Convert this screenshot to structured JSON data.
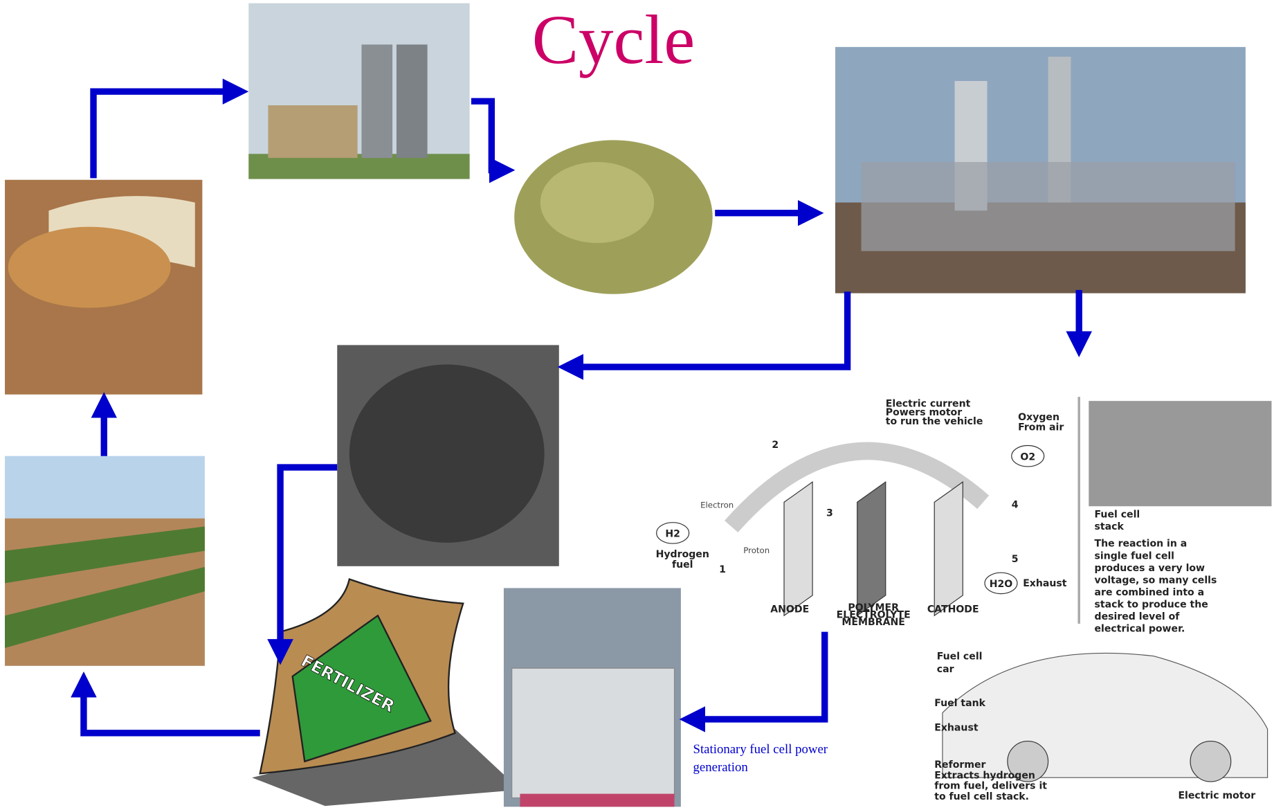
{
  "title": "Cycle",
  "caption": [
    "Stationary fuel cell power",
    "generation"
  ],
  "fertilizer_label": "FERTILIZER",
  "fuel_cell": {
    "current": [
      "Electric current",
      "Powers motor",
      "to run the vehicle"
    ],
    "oxygen": [
      "Oxygen",
      "From air"
    ],
    "o2": "O2",
    "h2": "H2",
    "h2o": "H2O",
    "hydrogen": [
      "Hydrogen",
      "fuel"
    ],
    "electron": "Electron",
    "proton": "Proton",
    "steps": [
      "1",
      "2",
      "3",
      "4",
      "5"
    ],
    "exhaust": "Exhaust",
    "anode": "ANODE",
    "membrane": [
      "POLYMER",
      "ELECTROLYTE",
      "MEMBRANE"
    ],
    "cathode": "CATHODE",
    "stack_title": [
      "Fuel cell",
      "stack"
    ],
    "stack_text": [
      "The reaction in a",
      "single fuel cell",
      "produces a very low",
      "voltage, so many cells",
      "are combined into a",
      "stack to produce the",
      "desired level of",
      "electrical power."
    ],
    "car_title": [
      "Fuel cell",
      "car"
    ],
    "fuel_tank": "Fuel tank",
    "car_exhaust": "Exhaust",
    "reformer": [
      "Reformer",
      "Extracts hydrogen",
      "from fuel, delivers it",
      "to fuel cell stack."
    ],
    "motor": "Electric motor"
  }
}
